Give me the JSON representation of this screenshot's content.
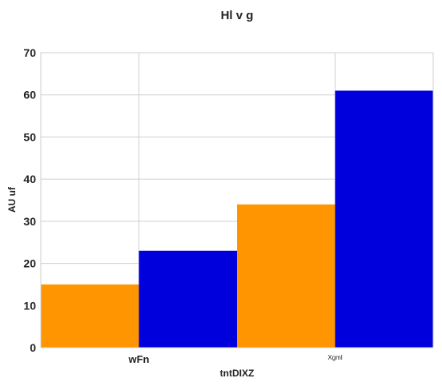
{
  "chart_data": {
    "type": "bar",
    "title": "Hl v  g",
    "xlabel": "tntDIXZ",
    "ylabel": "AU uf",
    "categories": [
      "wFn",
      "Xgml"
    ],
    "series": [
      {
        "values": [
          15,
          34
        ],
        "color": "#ff9500"
      },
      {
        "values": [
          23,
          61
        ],
        "color": "#0000dc"
      }
    ],
    "ylim": [
      0,
      70
    ],
    "yticks": [
      0,
      10,
      20,
      30,
      40,
      50,
      60,
      70
    ],
    "grid": true,
    "legend": "none"
  }
}
